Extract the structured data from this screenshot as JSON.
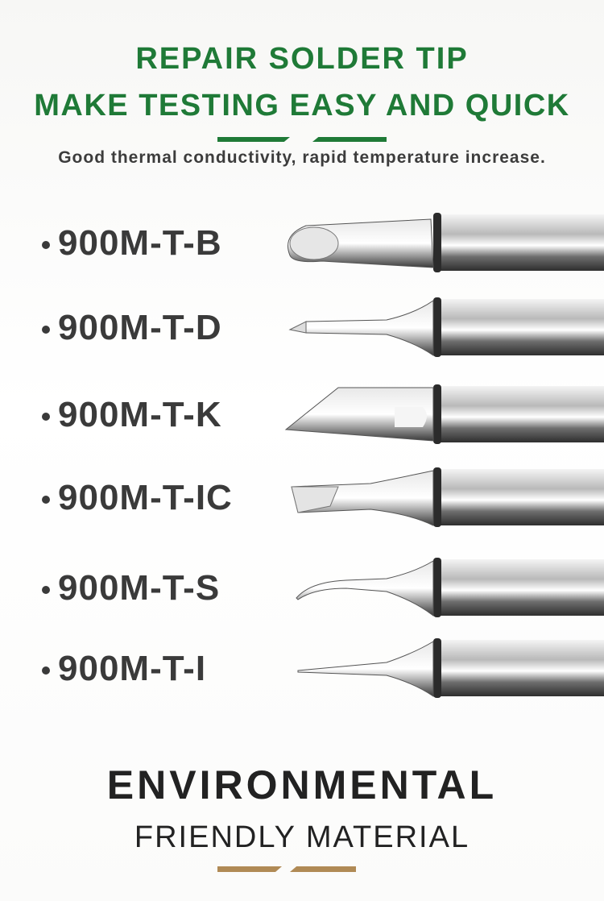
{
  "header": {
    "line1": "REPAIR SOLDER TIP",
    "line2": "MAKE TESTING EASY AND QUICK",
    "subtitle": "Good thermal conductivity, rapid temperature increase.",
    "accent_color": "#1f7a37"
  },
  "tips": [
    {
      "label": "900M-T-B",
      "shape": "bevel-round-icon"
    },
    {
      "label": "900M-T-D",
      "shape": "chisel-icon"
    },
    {
      "label": "900M-T-K",
      "shape": "knife-icon"
    },
    {
      "label": "900M-T-IC",
      "shape": "wide-bevel-icon"
    },
    {
      "label": "900M-T-S",
      "shape": "bent-needle-icon"
    },
    {
      "label": "900M-T-I",
      "shape": "fine-point-icon"
    }
  ],
  "footer": {
    "line1": "ENVIRONMENTAL",
    "line2": "FRIENDLY MATERIAL",
    "accent_color": "#b08a55"
  }
}
